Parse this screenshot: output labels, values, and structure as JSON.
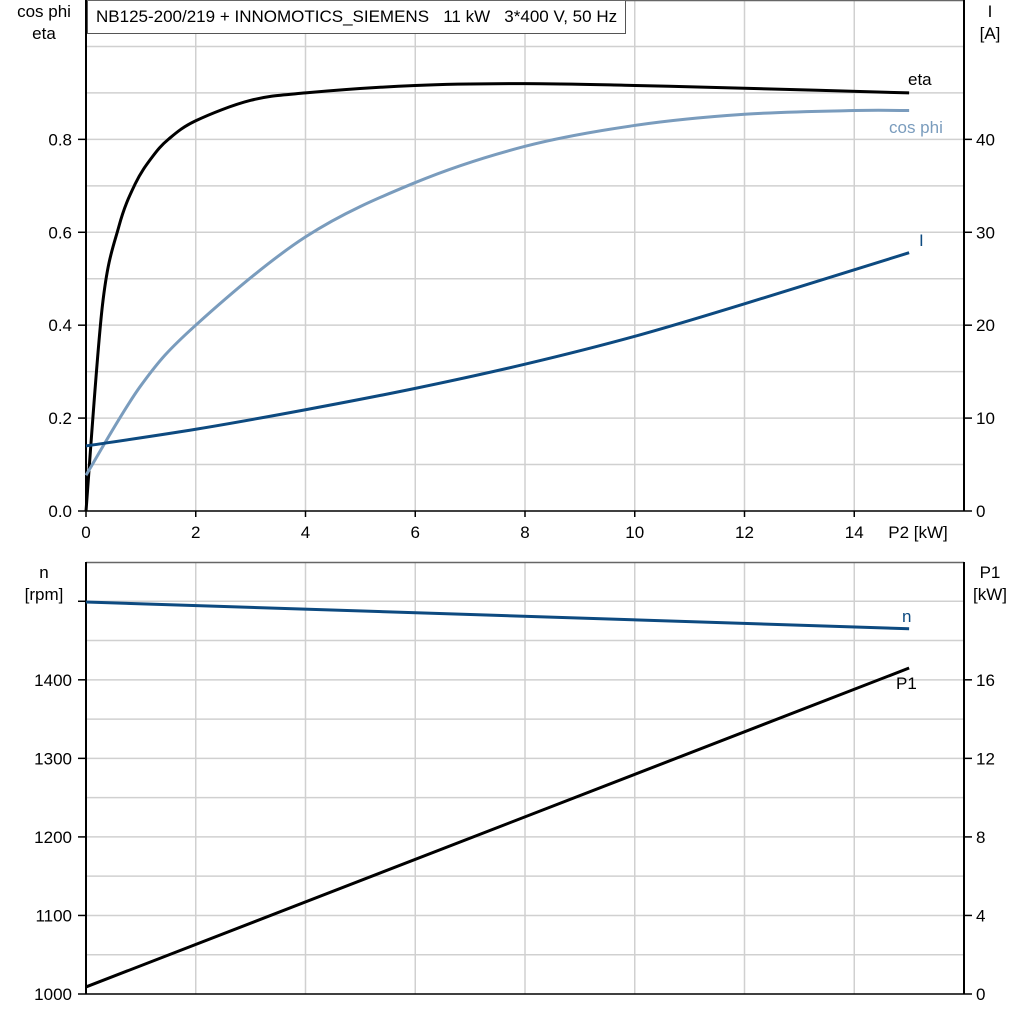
{
  "chart_data": [
    {
      "type": "line",
      "title": "NB125-200/219 + INNOMOTICS_SIEMENS   11 kW   3*400 V, 50 Hz",
      "xlabel": "P2 [kW]",
      "ylabel_left": [
        "cos phi",
        "eta"
      ],
      "ylabel_right": [
        "I",
        "[A]"
      ],
      "xlim": [
        0,
        16
      ],
      "ylim_left": [
        0,
        1.1
      ],
      "ylim_right": [
        0,
        55
      ],
      "x_ticks": [
        0,
        2,
        4,
        6,
        8,
        10,
        12,
        14
      ],
      "y_left_ticks": [
        0.0,
        0.2,
        0.4,
        0.6,
        0.8
      ],
      "y_left_tick_labels": [
        "0.0",
        "0.2",
        "0.4",
        "0.6",
        "0.8"
      ],
      "y_right_ticks": [
        0,
        10,
        20,
        30,
        40
      ],
      "grid": true,
      "series": [
        {
          "name": "eta",
          "axis": "left",
          "color": "#000000",
          "x": [
            0,
            0.3,
            0.6,
            0.9,
            1.2,
            1.5,
            2,
            3,
            4,
            6,
            8,
            10,
            12,
            15
          ],
          "y": [
            0,
            0.443,
            0.613,
            0.705,
            0.761,
            0.8,
            0.84,
            0.884,
            0.9,
            0.916,
            0.92,
            0.916,
            0.91,
            0.9
          ]
        },
        {
          "name": "cos phi",
          "axis": "left",
          "color": "#7a9cbd",
          "x": [
            0,
            1,
            2,
            4,
            6,
            8,
            10,
            12,
            14,
            15
          ],
          "y": [
            0.077,
            0.27,
            0.4,
            0.59,
            0.707,
            0.785,
            0.83,
            0.854,
            0.862,
            0.862
          ]
        },
        {
          "name": "I",
          "axis": "right",
          "color": "#0d4a80",
          "x": [
            0,
            2,
            4,
            6,
            8,
            10,
            12,
            15
          ],
          "y": [
            7.0,
            8.8,
            10.9,
            13.2,
            15.8,
            18.8,
            22.3,
            27.8
          ]
        }
      ]
    },
    {
      "type": "line",
      "ylabel_left": [
        "n",
        "[rpm]"
      ],
      "ylabel_right": [
        "P1",
        "[kW]"
      ],
      "xlim": [
        0,
        16
      ],
      "ylim_left": [
        1000,
        1550
      ],
      "ylim_right": [
        0,
        22
      ],
      "y_left_ticks": [
        1000,
        1100,
        1200,
        1300,
        1400,
        1500
      ],
      "y_left_tick_labels": [
        "1000",
        "1100",
        "1200",
        "1300",
        "1400",
        ""
      ],
      "y_right_ticks": [
        0,
        4,
        8,
        12,
        16
      ],
      "grid": true,
      "series": [
        {
          "name": "n",
          "axis": "left",
          "color": "#0d4a80",
          "x": [
            0,
            15
          ],
          "y": [
            1499,
            1465
          ]
        },
        {
          "name": "P1",
          "axis": "right",
          "color": "#000000",
          "x": [
            0,
            15
          ],
          "y": [
            0.36,
            16.6
          ]
        }
      ]
    }
  ]
}
